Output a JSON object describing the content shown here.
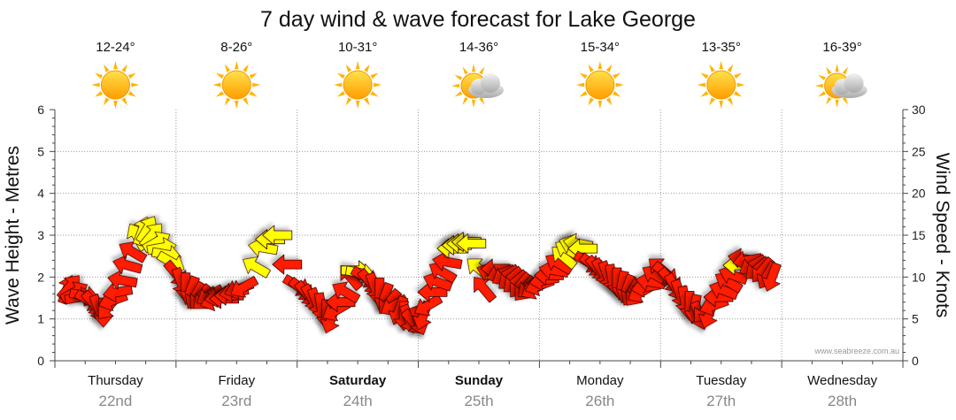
{
  "chart_data": {
    "type": "line",
    "title": "7 day wind & wave forecast for Lake George",
    "ylabel_left": "Wave Height - Metres",
    "ylabel_right": "Wind Speed - Knots",
    "ylim_left": [
      0,
      6
    ],
    "ylim_right": [
      0,
      30
    ],
    "yticks_left": [
      "0",
      "1",
      "2",
      "3",
      "4",
      "5",
      "6"
    ],
    "yticks_right": [
      "0",
      "5",
      "10",
      "15",
      "20",
      "25",
      "30"
    ],
    "credit": "www.seabreeze.com.au",
    "days": [
      {
        "name": "Thursday",
        "date": "22nd",
        "temp": "12-24°",
        "weather": "sunny",
        "bold": false
      },
      {
        "name": "Friday",
        "date": "23rd",
        "temp": "8-26°",
        "weather": "sunny",
        "bold": false
      },
      {
        "name": "Saturday",
        "date": "24th",
        "temp": "10-31°",
        "weather": "sunny",
        "bold": true
      },
      {
        "name": "Sunday",
        "date": "25th",
        "temp": "14-36°",
        "weather": "partly-cloudy",
        "bold": true
      },
      {
        "name": "Monday",
        "date": "26th",
        "temp": "15-34°",
        "weather": "sunny",
        "bold": false
      },
      {
        "name": "Tuesday",
        "date": "27th",
        "temp": "13-35°",
        "weather": "sunny",
        "bold": false
      },
      {
        "name": "Wednesday",
        "date": "28th",
        "temp": "16-39°",
        "weather": "partly-cloudy",
        "bold": false
      }
    ],
    "wind_series": {
      "name": "Wind Speed",
      "units": "knots",
      "colors": {
        "strong": "#ff1a00",
        "moderate": "#ffff00",
        "outline": "#3a0000"
      },
      "points": [
        {
          "t": 0.1,
          "speed": 8.5,
          "dir": 20,
          "color": "strong"
        },
        {
          "t": 0.12,
          "speed": 8.8,
          "dir": 40,
          "color": "strong"
        },
        {
          "t": 0.16,
          "speed": 8.2,
          "dir": 60,
          "color": "strong"
        },
        {
          "t": 0.2,
          "speed": 7.6,
          "dir": 80,
          "color": "strong"
        },
        {
          "t": 0.24,
          "speed": 7.8,
          "dir": 100,
          "color": "strong"
        },
        {
          "t": 0.28,
          "speed": 7.2,
          "dir": 120,
          "color": "strong"
        },
        {
          "t": 0.32,
          "speed": 6.8,
          "dir": 140,
          "color": "strong"
        },
        {
          "t": 0.36,
          "speed": 6.2,
          "dir": 160,
          "color": "strong"
        },
        {
          "t": 0.4,
          "speed": 5.8,
          "dir": 180,
          "color": "strong"
        },
        {
          "t": 0.44,
          "speed": 6.4,
          "dir": 220,
          "color": "strong"
        },
        {
          "t": 0.48,
          "speed": 7.2,
          "dir": 250,
          "color": "strong"
        },
        {
          "t": 0.52,
          "speed": 8.2,
          "dir": 260,
          "color": "strong"
        },
        {
          "t": 0.56,
          "speed": 9.6,
          "dir": 280,
          "color": "strong"
        },
        {
          "t": 0.6,
          "speed": 11.4,
          "dir": 285,
          "color": "strong"
        },
        {
          "t": 0.64,
          "speed": 13.0,
          "dir": 300,
          "color": "strong"
        },
        {
          "t": 0.68,
          "speed": 14.8,
          "dir": 330,
          "color": "moderate"
        },
        {
          "t": 0.72,
          "speed": 15.5,
          "dir": 20,
          "color": "moderate"
        },
        {
          "t": 0.76,
          "speed": 15.7,
          "dir": 30,
          "color": "moderate"
        },
        {
          "t": 0.8,
          "speed": 15.0,
          "dir": 40,
          "color": "moderate"
        },
        {
          "t": 0.84,
          "speed": 14.2,
          "dir": 60,
          "color": "moderate"
        },
        {
          "t": 0.88,
          "speed": 13.5,
          "dir": 80,
          "color": "moderate"
        },
        {
          "t": 0.92,
          "speed": 12.7,
          "dir": 100,
          "color": "moderate"
        },
        {
          "t": 0.96,
          "speed": 11.8,
          "dir": 120,
          "color": "moderate"
        },
        {
          "t": 1.0,
          "speed": 10.4,
          "dir": 140,
          "color": "strong"
        },
        {
          "t": 1.04,
          "speed": 9.4,
          "dir": 160,
          "color": "strong"
        },
        {
          "t": 1.08,
          "speed": 8.8,
          "dir": 180,
          "color": "strong"
        },
        {
          "t": 1.12,
          "speed": 8.4,
          "dir": 200,
          "color": "strong"
        },
        {
          "t": 1.16,
          "speed": 7.8,
          "dir": 210,
          "color": "strong"
        },
        {
          "t": 1.2,
          "speed": 7.6,
          "dir": 220,
          "color": "strong"
        },
        {
          "t": 1.24,
          "speed": 7.4,
          "dir": 230,
          "color": "strong"
        },
        {
          "t": 1.28,
          "speed": 7.8,
          "dir": 240,
          "color": "strong"
        },
        {
          "t": 1.32,
          "speed": 7.2,
          "dir": 250,
          "color": "strong"
        },
        {
          "t": 1.36,
          "speed": 7.6,
          "dir": 260,
          "color": "strong"
        },
        {
          "t": 1.4,
          "speed": 7.4,
          "dir": 270,
          "color": "strong"
        },
        {
          "t": 1.44,
          "speed": 7.8,
          "dir": 270,
          "color": "strong"
        },
        {
          "t": 1.48,
          "speed": 8.2,
          "dir": 260,
          "color": "strong"
        },
        {
          "t": 1.52,
          "speed": 8.6,
          "dir": 250,
          "color": "strong"
        },
        {
          "t": 1.56,
          "speed": 8.8,
          "dir": 240,
          "color": "strong"
        },
        {
          "t": 1.66,
          "speed": 11.2,
          "dir": 300,
          "color": "moderate"
        },
        {
          "t": 1.72,
          "speed": 13.5,
          "dir": 280,
          "color": "moderate"
        },
        {
          "t": 1.78,
          "speed": 14.5,
          "dir": 270,
          "color": "moderate"
        },
        {
          "t": 1.84,
          "speed": 15.0,
          "dir": 270,
          "color": "moderate"
        },
        {
          "t": 1.92,
          "speed": 11.5,
          "dir": 270,
          "color": "strong"
        },
        {
          "t": 2.0,
          "speed": 9.0,
          "dir": 120,
          "color": "strong"
        },
        {
          "t": 2.04,
          "speed": 8.5,
          "dir": 130,
          "color": "strong"
        },
        {
          "t": 2.08,
          "speed": 8.0,
          "dir": 140,
          "color": "strong"
        },
        {
          "t": 2.12,
          "speed": 7.5,
          "dir": 150,
          "color": "strong"
        },
        {
          "t": 2.16,
          "speed": 7.0,
          "dir": 160,
          "color": "strong"
        },
        {
          "t": 2.2,
          "speed": 6.4,
          "dir": 170,
          "color": "strong"
        },
        {
          "t": 2.24,
          "speed": 5.6,
          "dir": 180,
          "color": "strong"
        },
        {
          "t": 2.28,
          "speed": 5.0,
          "dir": 200,
          "color": "strong"
        },
        {
          "t": 2.32,
          "speed": 6.0,
          "dir": 240,
          "color": "strong"
        },
        {
          "t": 2.36,
          "speed": 7.0,
          "dir": 270,
          "color": "strong"
        },
        {
          "t": 2.4,
          "speed": 8.2,
          "dir": 300,
          "color": "strong"
        },
        {
          "t": 2.44,
          "speed": 10.0,
          "dir": 320,
          "color": "strong"
        },
        {
          "t": 2.48,
          "speed": 10.8,
          "dir": 90,
          "color": "moderate"
        },
        {
          "t": 2.52,
          "speed": 10.5,
          "dir": 100,
          "color": "moderate"
        },
        {
          "t": 2.56,
          "speed": 10.0,
          "dir": 120,
          "color": "strong"
        },
        {
          "t": 2.6,
          "speed": 9.4,
          "dir": 140,
          "color": "strong"
        },
        {
          "t": 2.64,
          "speed": 8.8,
          "dir": 160,
          "color": "strong"
        },
        {
          "t": 2.68,
          "speed": 8.2,
          "dir": 180,
          "color": "strong"
        },
        {
          "t": 2.72,
          "speed": 7.6,
          "dir": 200,
          "color": "strong"
        },
        {
          "t": 2.76,
          "speed": 7.0,
          "dir": 220,
          "color": "strong"
        },
        {
          "t": 2.8,
          "speed": 6.6,
          "dir": 240,
          "color": "strong"
        },
        {
          "t": 2.84,
          "speed": 6.0,
          "dir": 200,
          "color": "strong"
        },
        {
          "t": 2.88,
          "speed": 5.4,
          "dir": 180,
          "color": "strong"
        },
        {
          "t": 2.92,
          "speed": 5.0,
          "dir": 160,
          "color": "strong"
        },
        {
          "t": 2.96,
          "speed": 4.6,
          "dir": 140,
          "color": "strong"
        },
        {
          "t": 3.0,
          "speed": 4.8,
          "dir": 160,
          "color": "strong"
        },
        {
          "t": 3.04,
          "speed": 5.4,
          "dir": 200,
          "color": "strong"
        },
        {
          "t": 3.08,
          "speed": 6.6,
          "dir": 240,
          "color": "strong"
        },
        {
          "t": 3.12,
          "speed": 8.2,
          "dir": 270,
          "color": "strong"
        },
        {
          "t": 3.16,
          "speed": 9.4,
          "dir": 290,
          "color": "strong"
        },
        {
          "t": 3.2,
          "speed": 10.6,
          "dir": 300,
          "color": "strong"
        },
        {
          "t": 3.24,
          "speed": 11.8,
          "dir": 280,
          "color": "strong"
        },
        {
          "t": 3.28,
          "speed": 13.4,
          "dir": 270,
          "color": "moderate"
        },
        {
          "t": 3.32,
          "speed": 13.8,
          "dir": 270,
          "color": "moderate"
        },
        {
          "t": 3.36,
          "speed": 14.0,
          "dir": 270,
          "color": "moderate"
        },
        {
          "t": 3.4,
          "speed": 14.2,
          "dir": 270,
          "color": "moderate"
        },
        {
          "t": 3.44,
          "speed": 14.0,
          "dir": 270,
          "color": "moderate"
        },
        {
          "t": 3.5,
          "speed": 11.0,
          "dir": 310,
          "color": "moderate"
        },
        {
          "t": 3.54,
          "speed": 8.6,
          "dir": 320,
          "color": "strong"
        },
        {
          "t": 3.6,
          "speed": 10.5,
          "dir": 290,
          "color": "strong"
        },
        {
          "t": 3.64,
          "speed": 11.0,
          "dir": 270,
          "color": "strong"
        },
        {
          "t": 3.68,
          "speed": 10.4,
          "dir": 250,
          "color": "strong"
        },
        {
          "t": 3.72,
          "speed": 10.2,
          "dir": 240,
          "color": "strong"
        },
        {
          "t": 3.76,
          "speed": 9.8,
          "dir": 230,
          "color": "strong"
        },
        {
          "t": 3.8,
          "speed": 9.4,
          "dir": 230,
          "color": "strong"
        },
        {
          "t": 3.84,
          "speed": 9.0,
          "dir": 220,
          "color": "strong"
        },
        {
          "t": 3.88,
          "speed": 8.6,
          "dir": 220,
          "color": "strong"
        },
        {
          "t": 3.92,
          "speed": 8.8,
          "dir": 230,
          "color": "strong"
        },
        {
          "t": 3.96,
          "speed": 8.6,
          "dir": 240,
          "color": "strong"
        },
        {
          "t": 4.0,
          "speed": 9.0,
          "dir": 250,
          "color": "strong"
        },
        {
          "t": 4.04,
          "speed": 9.6,
          "dir": 260,
          "color": "strong"
        },
        {
          "t": 4.08,
          "speed": 10.2,
          "dir": 270,
          "color": "strong"
        },
        {
          "t": 4.12,
          "speed": 10.8,
          "dir": 280,
          "color": "strong"
        },
        {
          "t": 4.16,
          "speed": 11.6,
          "dir": 300,
          "color": "strong"
        },
        {
          "t": 4.2,
          "speed": 12.4,
          "dir": 310,
          "color": "moderate"
        },
        {
          "t": 4.24,
          "speed": 13.2,
          "dir": 300,
          "color": "moderate"
        },
        {
          "t": 4.28,
          "speed": 13.8,
          "dir": 290,
          "color": "moderate"
        },
        {
          "t": 4.32,
          "speed": 14.0,
          "dir": 280,
          "color": "moderate"
        },
        {
          "t": 4.36,
          "speed": 13.4,
          "dir": 270,
          "color": "moderate"
        },
        {
          "t": 4.4,
          "speed": 11.8,
          "dir": 120,
          "color": "strong"
        },
        {
          "t": 4.44,
          "speed": 11.4,
          "dir": 130,
          "color": "strong"
        },
        {
          "t": 4.48,
          "speed": 11.0,
          "dir": 140,
          "color": "strong"
        },
        {
          "t": 4.52,
          "speed": 10.6,
          "dir": 150,
          "color": "strong"
        },
        {
          "t": 4.56,
          "speed": 10.2,
          "dir": 160,
          "color": "strong"
        },
        {
          "t": 4.6,
          "speed": 9.8,
          "dir": 170,
          "color": "strong"
        },
        {
          "t": 4.64,
          "speed": 9.4,
          "dir": 180,
          "color": "strong"
        },
        {
          "t": 4.68,
          "speed": 9.0,
          "dir": 190,
          "color": "strong"
        },
        {
          "t": 4.72,
          "speed": 8.6,
          "dir": 200,
          "color": "strong"
        },
        {
          "t": 4.76,
          "speed": 8.2,
          "dir": 210,
          "color": "strong"
        },
        {
          "t": 4.8,
          "speed": 8.0,
          "dir": 220,
          "color": "strong"
        },
        {
          "t": 4.84,
          "speed": 8.2,
          "dir": 240,
          "color": "strong"
        },
        {
          "t": 4.88,
          "speed": 8.8,
          "dir": 260,
          "color": "strong"
        },
        {
          "t": 4.92,
          "speed": 9.4,
          "dir": 280,
          "color": "strong"
        },
        {
          "t": 4.96,
          "speed": 10.2,
          "dir": 300,
          "color": "strong"
        },
        {
          "t": 5.0,
          "speed": 11.0,
          "dir": 310,
          "color": "strong"
        },
        {
          "t": 5.04,
          "speed": 10.4,
          "dir": 130,
          "color": "strong"
        },
        {
          "t": 5.08,
          "speed": 9.6,
          "dir": 140,
          "color": "strong"
        },
        {
          "t": 5.12,
          "speed": 8.8,
          "dir": 150,
          "color": "strong"
        },
        {
          "t": 5.16,
          "speed": 8.0,
          "dir": 160,
          "color": "strong"
        },
        {
          "t": 5.2,
          "speed": 7.2,
          "dir": 170,
          "color": "strong"
        },
        {
          "t": 5.24,
          "speed": 6.6,
          "dir": 180,
          "color": "strong"
        },
        {
          "t": 5.28,
          "speed": 6.2,
          "dir": 190,
          "color": "strong"
        },
        {
          "t": 5.32,
          "speed": 5.4,
          "dir": 160,
          "color": "strong"
        },
        {
          "t": 5.36,
          "speed": 6.0,
          "dir": 220,
          "color": "strong"
        },
        {
          "t": 5.4,
          "speed": 5.6,
          "dir": 200,
          "color": "strong"
        },
        {
          "t": 5.44,
          "speed": 6.6,
          "dir": 250,
          "color": "strong"
        },
        {
          "t": 5.48,
          "speed": 7.6,
          "dir": 270,
          "color": "strong"
        },
        {
          "t": 5.52,
          "speed": 8.4,
          "dir": 290,
          "color": "strong"
        },
        {
          "t": 5.56,
          "speed": 9.4,
          "dir": 300,
          "color": "strong"
        },
        {
          "t": 5.6,
          "speed": 10.2,
          "dir": 290,
          "color": "strong"
        },
        {
          "t": 5.64,
          "speed": 11.4,
          "dir": 270,
          "color": "moderate"
        },
        {
          "t": 5.68,
          "speed": 12.2,
          "dir": 280,
          "color": "strong"
        },
        {
          "t": 5.72,
          "speed": 12.0,
          "dir": 260,
          "color": "strong"
        },
        {
          "t": 5.76,
          "speed": 11.4,
          "dir": 240,
          "color": "strong"
        },
        {
          "t": 5.8,
          "speed": 11.0,
          "dir": 230,
          "color": "strong"
        },
        {
          "t": 5.84,
          "speed": 10.8,
          "dir": 220,
          "color": "strong"
        },
        {
          "t": 5.88,
          "speed": 10.2,
          "dir": 210,
          "color": "strong"
        },
        {
          "t": 5.92,
          "speed": 10.0,
          "dir": 200,
          "color": "strong"
        }
      ]
    },
    "wave_series": {
      "name": "Wave Height",
      "units": "metres",
      "points": []
    }
  }
}
